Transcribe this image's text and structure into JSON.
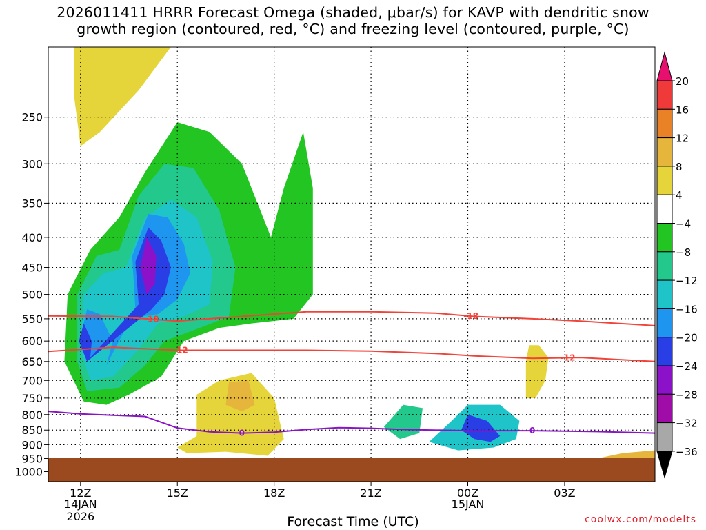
{
  "title": {
    "line1": "2026011411 HRRR Forecast Omega (shaded, μbar/s) for KAVP with dendritic snow",
    "line2": "growth region (contoured, red, °C) and freezing level (contoured, purple, °C)"
  },
  "credit": "coolwx.com/modelts",
  "chart_data": {
    "type": "heatmap",
    "xlabel": "Forecast Time (UTC)",
    "ylabel": "",
    "xlim_hours": [
      11,
      29.8
    ],
    "ylim_hPa": [
      1040,
      190
    ],
    "y_log_scale": true,
    "grid": true,
    "y_ticks": [
      250,
      300,
      350,
      400,
      450,
      500,
      550,
      600,
      650,
      700,
      750,
      800,
      850,
      900,
      950,
      1000
    ],
    "x_ticks": [
      {
        "hour": 12,
        "label": "12Z",
        "sub1": "14JAN",
        "sub2": "2026"
      },
      {
        "hour": 15,
        "label": "15Z",
        "sub1": "",
        "sub2": ""
      },
      {
        "hour": 18,
        "label": "18Z",
        "sub1": "",
        "sub2": ""
      },
      {
        "hour": 21,
        "label": "21Z",
        "sub1": "",
        "sub2": ""
      },
      {
        "hour": 24,
        "label": "00Z",
        "sub1": "15JAN",
        "sub2": ""
      },
      {
        "hour": 27,
        "label": "03Z",
        "sub1": "",
        "sub2": ""
      }
    ],
    "colorbar": {
      "labels": [
        "20",
        "16",
        "12",
        "8",
        "4",
        "−4",
        "−8",
        "−12",
        "−16",
        "−20",
        "−24",
        "−28",
        "−32",
        "−36"
      ],
      "colors": [
        "#e8106e",
        "#f03a3a",
        "#e98227",
        "#e6b53b",
        "#e6d53a",
        "#ffffff",
        "#22c522",
        "#22c88c",
        "#1ec4c8",
        "#1e96f0",
        "#2a3ee6",
        "#8b12c8",
        "#a00ca8",
        "#a8a8a8",
        "#000000"
      ]
    },
    "omega_regions": [
      {
        "level": -4,
        "color": "#22c522",
        "poly": [
          [
            12.1,
            760
          ],
          [
            11.5,
            650
          ],
          [
            11.6,
            500
          ],
          [
            12.3,
            420
          ],
          [
            13.2,
            370
          ],
          [
            14.0,
            310
          ],
          [
            15.0,
            255
          ],
          [
            16.0,
            265
          ],
          [
            17.0,
            300
          ],
          [
            17.9,
            400
          ],
          [
            18.3,
            330
          ],
          [
            18.9,
            265
          ],
          [
            19.2,
            330
          ],
          [
            19.2,
            500
          ],
          [
            18.6,
            550
          ],
          [
            17.3,
            560
          ],
          [
            16.3,
            570
          ],
          [
            15.2,
            600
          ],
          [
            14.5,
            690
          ],
          [
            13.5,
            740
          ],
          [
            12.8,
            770
          ]
        ]
      },
      {
        "level": -8,
        "color": "#22c88c",
        "poly": [
          [
            12.2,
            730
          ],
          [
            11.9,
            650
          ],
          [
            11.9,
            500
          ],
          [
            12.5,
            430
          ],
          [
            13.2,
            420
          ],
          [
            13.8,
            340
          ],
          [
            14.6,
            300
          ],
          [
            15.5,
            305
          ],
          [
            16.3,
            360
          ],
          [
            16.8,
            450
          ],
          [
            16.6,
            545
          ],
          [
            15.7,
            570
          ],
          [
            14.6,
            600
          ],
          [
            14.0,
            660
          ],
          [
            13.2,
            720
          ]
        ]
      },
      {
        "level": -12,
        "color": "#1ec4c8",
        "poly": [
          [
            12.3,
            700
          ],
          [
            12.0,
            620
          ],
          [
            12.1,
            500
          ],
          [
            12.7,
            460
          ],
          [
            13.4,
            450
          ],
          [
            14.0,
            370
          ],
          [
            14.8,
            345
          ],
          [
            15.6,
            370
          ],
          [
            16.1,
            440
          ],
          [
            16.0,
            520
          ],
          [
            15.2,
            545
          ],
          [
            14.4,
            560
          ],
          [
            13.8,
            620
          ],
          [
            13.0,
            690
          ]
        ]
      },
      {
        "level": -16,
        "color": "#1e96f0",
        "poly": [
          [
            12.2,
            650
          ],
          [
            12.0,
            590
          ],
          [
            12.2,
            530
          ],
          [
            12.6,
            540
          ],
          [
            13.0,
            600
          ],
          [
            12.8,
            660
          ],
          [
            13.7,
            530
          ],
          [
            13.6,
            430
          ],
          [
            14.1,
            365
          ],
          [
            14.7,
            370
          ],
          [
            15.2,
            410
          ],
          [
            15.4,
            460
          ],
          [
            15.0,
            510
          ],
          [
            14.4,
            540
          ],
          [
            13.9,
            545
          ]
        ]
      },
      {
        "level": -20,
        "color": "#2a3ee6",
        "poly": [
          [
            12.2,
            650
          ],
          [
            11.95,
            600
          ],
          [
            12.1,
            560
          ],
          [
            12.35,
            600
          ],
          [
            12.3,
            640
          ],
          [
            13.8,
            520
          ],
          [
            13.7,
            440
          ],
          [
            14.1,
            385
          ],
          [
            14.5,
            405
          ],
          [
            14.8,
            450
          ],
          [
            14.6,
            500
          ],
          [
            14.2,
            530
          ]
        ]
      },
      {
        "level": -28,
        "color": "#8b12c8",
        "poly": [
          [
            14.05,
            500
          ],
          [
            13.85,
            450
          ],
          [
            14.05,
            400
          ],
          [
            14.35,
            430
          ],
          [
            14.3,
            480
          ]
        ]
      },
      {
        "level": 4,
        "color": "#e6d53a",
        "poly": [
          [
            12.0,
            280
          ],
          [
            11.8,
            230
          ],
          [
            11.8,
            190
          ],
          [
            13.2,
            190
          ],
          [
            14.2,
            190
          ],
          [
            14.8,
            190
          ],
          [
            13.8,
            225
          ],
          [
            12.6,
            265
          ]
        ]
      },
      {
        "level": 4,
        "color": "#e6d53a",
        "poly": [
          [
            15.0,
            910
          ],
          [
            15.6,
            870
          ],
          [
            15.6,
            740
          ],
          [
            16.3,
            700
          ],
          [
            17.3,
            680
          ],
          [
            18.0,
            750
          ],
          [
            18.3,
            880
          ],
          [
            17.8,
            940
          ],
          [
            16.5,
            925
          ],
          [
            15.3,
            930
          ]
        ]
      },
      {
        "level": 8,
        "color": "#e6b53b",
        "poly": [
          [
            16.5,
            770
          ],
          [
            16.6,
            705
          ],
          [
            17.2,
            700
          ],
          [
            17.4,
            770
          ],
          [
            17.0,
            790
          ]
        ]
      },
      {
        "level": -8,
        "color": "#22c88c",
        "poly": [
          [
            21.4,
            840
          ],
          [
            22.0,
            770
          ],
          [
            22.6,
            780
          ],
          [
            22.5,
            860
          ],
          [
            21.9,
            880
          ]
        ]
      },
      {
        "level": 4,
        "color": "#e6d53a",
        "poly": [
          [
            25.8,
            750
          ],
          [
            25.8,
            650
          ],
          [
            25.9,
            610
          ],
          [
            26.2,
            610
          ],
          [
            26.5,
            640
          ],
          [
            26.4,
            700
          ],
          [
            26.1,
            750
          ]
        ]
      },
      {
        "level": -12,
        "color": "#1ec4c8",
        "poly": [
          [
            22.8,
            890
          ],
          [
            23.5,
            820
          ],
          [
            24.0,
            770
          ],
          [
            25.0,
            770
          ],
          [
            25.6,
            820
          ],
          [
            25.5,
            880
          ],
          [
            24.8,
            910
          ],
          [
            23.7,
            920
          ]
        ]
      },
      {
        "level": -20,
        "color": "#2a3ee6",
        "poly": [
          [
            23.8,
            850
          ],
          [
            24.0,
            800
          ],
          [
            24.6,
            820
          ],
          [
            25.0,
            870
          ],
          [
            24.7,
            890
          ],
          [
            24.2,
            880
          ]
        ]
      },
      {
        "level": 8,
        "color": "#e6b53b",
        "poly": [
          [
            28.0,
            950
          ],
          [
            28.8,
            930
          ],
          [
            29.8,
            920
          ],
          [
            29.8,
            960
          ],
          [
            28.2,
            965
          ]
        ]
      }
    ],
    "dendritic_growth_isotherms": [
      {
        "label": "-18",
        "points": [
          [
            11,
            544
          ],
          [
            13,
            545
          ],
          [
            15,
            555
          ],
          [
            17,
            545
          ],
          [
            19,
            535
          ],
          [
            21,
            535
          ],
          [
            23,
            538
          ],
          [
            24.2,
            545
          ],
          [
            26,
            550
          ],
          [
            27.5,
            555
          ],
          [
            29.8,
            565
          ]
        ]
      },
      {
        "label": "-12",
        "points": [
          [
            11,
            625
          ],
          [
            13,
            615
          ],
          [
            15,
            622
          ],
          [
            17,
            622
          ],
          [
            19,
            622
          ],
          [
            21,
            624
          ],
          [
            23,
            630
          ],
          [
            24.2,
            636
          ],
          [
            26,
            642
          ],
          [
            27.5,
            640
          ],
          [
            29.8,
            650
          ]
        ]
      }
    ],
    "freezing_level": {
      "label": "0",
      "points": [
        [
          11,
          790
        ],
        [
          12,
          798
        ],
        [
          13,
          802
        ],
        [
          14,
          806
        ],
        [
          15,
          843
        ],
        [
          16,
          856
        ],
        [
          17,
          860
        ],
        [
          18,
          857
        ],
        [
          19,
          848
        ],
        [
          20,
          842
        ],
        [
          21,
          844
        ],
        [
          22,
          848
        ],
        [
          24,
          852
        ],
        [
          26,
          852
        ],
        [
          28,
          855
        ],
        [
          29.8,
          860
        ]
      ]
    }
  }
}
